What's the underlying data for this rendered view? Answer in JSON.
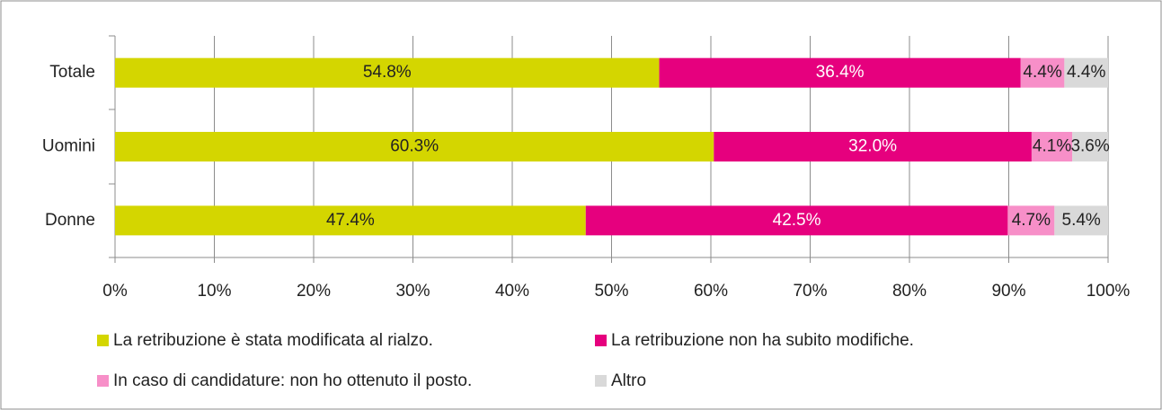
{
  "chart_data": {
    "type": "stacked_barh",
    "categories": [
      "Totale",
      "Uomini",
      "Donne"
    ],
    "series": [
      {
        "name": "La retribuzione è stata modificata al rialzo.",
        "color": "#d4d600",
        "label_color": "#222222",
        "values": [
          54.8,
          60.3,
          47.4
        ],
        "value_labels": [
          "54.8%",
          "60.3%",
          "47.4%"
        ]
      },
      {
        "name": "La retribuzione non ha subito modifiche.",
        "color": "#e6007e",
        "label_color": "#ffffff",
        "values": [
          36.4,
          32.0,
          42.5
        ],
        "value_labels": [
          "36.4%",
          "32.0%",
          "42.5%"
        ]
      },
      {
        "name": "In caso di candidature: non ho ottenuto il posto.",
        "color": "#f78fc8",
        "label_color": "#222222",
        "values": [
          4.4,
          4.1,
          4.7
        ],
        "value_labels": [
          "4.4%",
          "4.1%",
          "4.7%"
        ]
      },
      {
        "name": "Altro",
        "color": "#d9d9d9",
        "label_color": "#222222",
        "values": [
          4.4,
          3.6,
          5.4
        ],
        "value_labels": [
          "4.4%",
          "3.6%",
          "5.4%"
        ]
      }
    ],
    "xlim": [
      0,
      100
    ],
    "xticks": [
      {
        "value": 0,
        "label": "0%"
      },
      {
        "value": 10,
        "label": "10%"
      },
      {
        "value": 20,
        "label": "20%"
      },
      {
        "value": 30,
        "label": "30%"
      },
      {
        "value": 40,
        "label": "40%"
      },
      {
        "value": 50,
        "label": "50%"
      },
      {
        "value": 60,
        "label": "60%"
      },
      {
        "value": 70,
        "label": "70%"
      },
      {
        "value": 80,
        "label": "80%"
      },
      {
        "value": 90,
        "label": "90%"
      },
      {
        "value": 100,
        "label": "100%"
      }
    ],
    "grid": true
  }
}
